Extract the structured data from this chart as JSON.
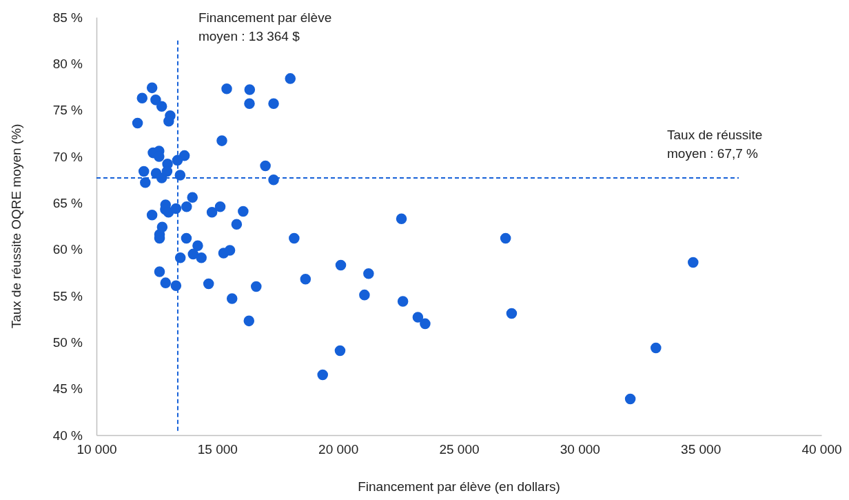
{
  "chart_data": {
    "type": "scatter",
    "xlabel": "Financement par élève (en dollars)",
    "ylabel": "Taux de réussite OQRE moyen (%)",
    "xlim": [
      10000,
      40000
    ],
    "xticks": [
      {
        "value": 10000,
        "label": "10 000"
      },
      {
        "value": 15000,
        "label": "15 000"
      },
      {
        "value": 20000,
        "label": "20 000"
      },
      {
        "value": 25000,
        "label": "25 000"
      },
      {
        "value": 30000,
        "label": "30 000"
      },
      {
        "value": 35000,
        "label": "35 000"
      },
      {
        "value": 40000,
        "label": "40 000"
      }
    ],
    "ylim": [
      40,
      85
    ],
    "yticks": [
      {
        "value": 40,
        "label": "40 %"
      },
      {
        "value": 45,
        "label": "45 %"
      },
      {
        "value": 50,
        "label": "50 %"
      },
      {
        "value": 55,
        "label": "55 %"
      },
      {
        "value": 60,
        "label": "60 %"
      },
      {
        "value": 65,
        "label": "65 %"
      },
      {
        "value": 70,
        "label": "70 %"
      },
      {
        "value": 75,
        "label": "75 %"
      },
      {
        "value": 80,
        "label": "80 %"
      },
      {
        "value": 85,
        "label": "85 %"
      }
    ],
    "grid": false,
    "marker": "circle",
    "ref_lines": [
      {
        "axis": "x",
        "value": 13364,
        "label": "Financement par élève\nmoyen : 13 364 $",
        "color": "#1560d8",
        "line_style": "dashed"
      },
      {
        "axis": "y",
        "value": 67.7,
        "label": "Taux de réussite\nmoyen : 67,7 %",
        "color": "#1560d8",
        "line_style": "dashed"
      }
    ],
    "series": [
      {
        "color": "#1560d8",
        "x": [
          12300,
          11890,
          12450,
          12700,
          13050,
          12990,
          11700,
          15390,
          16340,
          16330,
          17330,
          18020,
          15190,
          12340,
          12590,
          12590,
          13640,
          13350,
          12940,
          11960,
          12470,
          12920,
          12700,
          13460,
          12020,
          16990,
          17330,
          13970,
          12860,
          12850,
          12980,
          13290,
          13730,
          12300,
          14780,
          15120,
          16070,
          15800,
          12720,
          12610,
          12610,
          13720,
          14190,
          14000,
          14340,
          13470,
          15260,
          15520,
          18180,
          12610,
          12860,
          13290,
          14640,
          16610,
          18650,
          15610,
          16310,
          20110,
          21260,
          21090,
          22680,
          22620,
          23300,
          23600,
          20080,
          19360,
          26930,
          27180,
          34690,
          33150,
          32090
        ],
        "values": [
          77.4,
          76.3,
          76.1,
          75.4,
          74.4,
          73.8,
          73.6,
          77.3,
          77.2,
          75.7,
          75.7,
          78.4,
          71.7,
          70.4,
          70.6,
          70.0,
          70.1,
          69.6,
          69.2,
          68.4,
          68.2,
          68.4,
          67.7,
          68.0,
          67.2,
          69.0,
          67.5,
          65.6,
          64.8,
          64.3,
          64.0,
          64.4,
          64.6,
          63.7,
          64.0,
          64.6,
          64.1,
          62.7,
          62.4,
          61.6,
          61.2,
          61.2,
          60.4,
          59.5,
          59.1,
          59.1,
          59.6,
          59.9,
          61.2,
          57.6,
          56.4,
          56.1,
          56.3,
          56.0,
          56.8,
          54.7,
          52.3,
          58.3,
          57.4,
          55.1,
          54.4,
          63.3,
          52.7,
          52.0,
          49.1,
          46.5,
          61.2,
          53.1,
          58.6,
          49.4,
          43.9
        ]
      }
    ]
  }
}
